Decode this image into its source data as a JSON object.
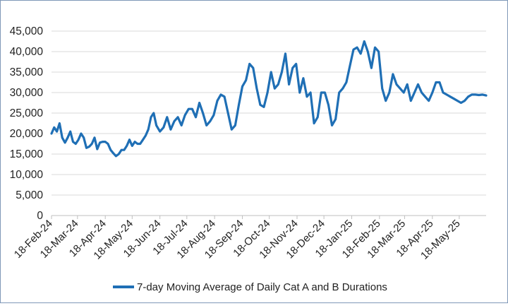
{
  "chart_data": {
    "type": "line",
    "title": "",
    "xlabel": "",
    "ylabel": "",
    "ylim": [
      0,
      45000
    ],
    "yticks": [
      0,
      5000,
      10000,
      15000,
      20000,
      25000,
      30000,
      35000,
      40000,
      45000
    ],
    "ytick_labels": [
      "0",
      "5,000",
      "10,000",
      "15,000",
      "20,000",
      "25,000",
      "30,000",
      "35,000",
      "40,000",
      "45,000"
    ],
    "xticks": [
      "18-Feb-24",
      "18-Mar-24",
      "18-Apr-24",
      "18-May-24",
      "18-Jun-24",
      "18-Jul-24",
      "18-Aug-24",
      "18-Sep-24",
      "18-Oct-24",
      "18-Nov-24",
      "18-Dec-24",
      "18-Jan-25",
      "18-Feb-25",
      "18-Mar-25",
      "18-Apr-25",
      "18-May-25"
    ],
    "x_range": [
      "2024-02-18",
      "2025-06-17"
    ],
    "grid": "horizontal",
    "legend_position": "bottom",
    "line_color": "#1f6fb5",
    "series": [
      {
        "name": "7-day Moving Average of Daily Cat A and B Durations",
        "x": [
          "2024-02-18",
          "2024-02-21",
          "2024-02-24",
          "2024-02-27",
          "2024-03-01",
          "2024-03-04",
          "2024-03-07",
          "2024-03-10",
          "2024-03-13",
          "2024-03-16",
          "2024-03-19",
          "2024-03-22",
          "2024-03-25",
          "2024-03-28",
          "2024-03-31",
          "2024-04-03",
          "2024-04-06",
          "2024-04-09",
          "2024-04-12",
          "2024-04-15",
          "2024-04-18",
          "2024-04-21",
          "2024-04-24",
          "2024-04-27",
          "2024-04-30",
          "2024-05-03",
          "2024-05-06",
          "2024-05-09",
          "2024-05-12",
          "2024-05-15",
          "2024-05-18",
          "2024-05-21",
          "2024-05-24",
          "2024-05-27",
          "2024-05-30",
          "2024-06-02",
          "2024-06-05",
          "2024-06-08",
          "2024-06-11",
          "2024-06-14",
          "2024-06-18",
          "2024-06-22",
          "2024-06-26",
          "2024-06-30",
          "2024-07-04",
          "2024-07-08",
          "2024-07-12",
          "2024-07-16",
          "2024-07-20",
          "2024-07-24",
          "2024-07-28",
          "2024-08-01",
          "2024-08-05",
          "2024-08-09",
          "2024-08-13",
          "2024-08-17",
          "2024-08-21",
          "2024-08-25",
          "2024-08-29",
          "2024-09-02",
          "2024-09-06",
          "2024-09-10",
          "2024-09-14",
          "2024-09-18",
          "2024-09-22",
          "2024-09-26",
          "2024-09-30",
          "2024-10-04",
          "2024-10-08",
          "2024-10-12",
          "2024-10-16",
          "2024-10-20",
          "2024-10-24",
          "2024-10-28",
          "2024-11-01",
          "2024-11-05",
          "2024-11-09",
          "2024-11-13",
          "2024-11-17",
          "2024-11-21",
          "2024-11-25",
          "2024-11-29",
          "2024-12-03",
          "2024-12-07",
          "2024-12-11",
          "2024-12-15",
          "2024-12-19",
          "2024-12-23",
          "2024-12-27",
          "2024-12-31",
          "2025-01-04",
          "2025-01-08",
          "2025-01-12",
          "2025-01-16",
          "2025-01-20",
          "2025-01-24",
          "2025-01-28",
          "2025-02-01",
          "2025-02-05",
          "2025-02-09",
          "2025-02-13",
          "2025-02-17",
          "2025-02-21",
          "2025-02-25",
          "2025-03-01",
          "2025-03-05",
          "2025-03-09",
          "2025-03-13",
          "2025-03-17",
          "2025-03-21",
          "2025-03-25",
          "2025-03-29",
          "2025-04-02",
          "2025-04-06",
          "2025-04-10",
          "2025-04-14",
          "2025-04-18",
          "2025-04-22",
          "2025-04-26",
          "2025-04-30",
          "2025-05-04",
          "2025-05-08",
          "2025-05-12",
          "2025-05-16",
          "2025-05-20",
          "2025-05-24",
          "2025-05-28",
          "2025-06-01",
          "2025-06-05",
          "2025-06-09",
          "2025-06-13",
          "2025-06-17"
        ],
        "values": [
          20000,
          21500,
          20500,
          22500,
          19000,
          17800,
          19000,
          20500,
          18000,
          17500,
          18500,
          20000,
          19000,
          16500,
          16800,
          17500,
          19000,
          16200,
          17800,
          18000,
          18000,
          17500,
          16000,
          15200,
          14500,
          15000,
          16000,
          16000,
          17000,
          18500,
          17000,
          18000,
          17500,
          17500,
          18500,
          19500,
          21000,
          24000,
          25000,
          22000,
          20500,
          21500,
          24000,
          21000,
          23000,
          24000,
          22000,
          24500,
          26000,
          26000,
          24000,
          27500,
          25000,
          22000,
          23000,
          24500,
          28000,
          29500,
          29000,
          25000,
          21000,
          22000,
          27000,
          31500,
          33000,
          37000,
          36000,
          31000,
          27000,
          26500,
          30000,
          35000,
          31000,
          32000,
          35000,
          39500,
          32000,
          36000,
          37000,
          30000,
          33500,
          29000,
          30000,
          22500,
          24000,
          30000,
          30000,
          27000,
          22000,
          23500,
          30000,
          31000,
          32500,
          36500,
          40500,
          41000,
          39500,
          42500,
          40000,
          36000,
          41000,
          40000,
          31000,
          28000,
          30000,
          34500,
          32000,
          31000,
          30000,
          32000,
          28000,
          30000,
          32000,
          30000,
          29000,
          28000,
          30000,
          32500,
          32500,
          30000,
          29500,
          29000,
          28500,
          28000,
          27500,
          28000,
          29000,
          29500,
          29500,
          29400,
          29500,
          29300
        ],
        "color": "#1f6fb5"
      }
    ]
  }
}
